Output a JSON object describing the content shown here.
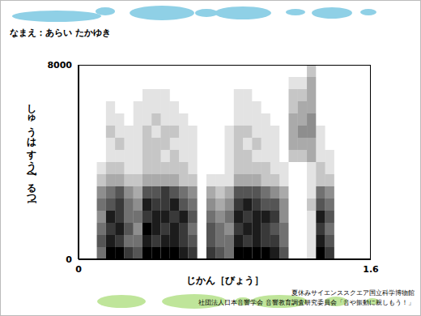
{
  "chart_data": {
    "type": "heatmap",
    "title": "なまえ：あらい たかゆき",
    "x_label": "じかん［びょう］",
    "y_label": "しゅうはすう［へるつ］",
    "xlim": [
      0,
      1.6
    ],
    "ylim": [
      0,
      8000
    ],
    "xticks": [
      0,
      1.6
    ],
    "yticks": [
      0,
      8000
    ],
    "grid": false,
    "color": "#000000",
    "cell_range": [
      0,
      9
    ],
    "x_edges": [
      0,
      0.05,
      0.1,
      0.15,
      0.2,
      0.25,
      0.3,
      0.35,
      0.4,
      0.45,
      0.5,
      0.55,
      0.6,
      0.65,
      0.7,
      0.75,
      0.8,
      0.85,
      0.9,
      0.95,
      1,
      1.05,
      1.1,
      1.15,
      1.2,
      1.25,
      1.3,
      1.35,
      1.4,
      1.45,
      1.5,
      1.55,
      1.6
    ],
    "y_edges": [
      0,
      500,
      1000,
      1500,
      2000,
      2500,
      3000,
      3500,
      4000,
      4500,
      5000,
      5500,
      6000,
      6500,
      7000,
      7500,
      8000
    ],
    "cells": [
      [
        0,
        0,
        0,
        0,
        0,
        0,
        0,
        0,
        0,
        0,
        0,
        0,
        0,
        0,
        0,
        0
      ],
      [
        0,
        0,
        0,
        0,
        0,
        0,
        0,
        0,
        0,
        0,
        0,
        0,
        0,
        0,
        0,
        0
      ],
      [
        5,
        6,
        5,
        4,
        5,
        4,
        2,
        1,
        0,
        0,
        0,
        0,
        0,
        0,
        0,
        0
      ],
      [
        9,
        8,
        7,
        8,
        6,
        5,
        3,
        2,
        1,
        1,
        2,
        1,
        1,
        0,
        0,
        0
      ],
      [
        9,
        7,
        8,
        7,
        7,
        6,
        3,
        2,
        1,
        2,
        1,
        1,
        0,
        0,
        0,
        0
      ],
      [
        7,
        5,
        6,
        5,
        5,
        4,
        2,
        1,
        1,
        1,
        1,
        0,
        0,
        0,
        0,
        0
      ],
      [
        6,
        5,
        4,
        5,
        4,
        3,
        2,
        1,
        1,
        1,
        1,
        1,
        1,
        0,
        0,
        0
      ],
      [
        9,
        8,
        9,
        7,
        8,
        6,
        3,
        2,
        2,
        2,
        2,
        1,
        1,
        1,
        0,
        0
      ],
      [
        9,
        7,
        8,
        8,
        7,
        6,
        3,
        2,
        2,
        2,
        1,
        2,
        1,
        1,
        0,
        0
      ],
      [
        9,
        8,
        7,
        8,
        7,
        7,
        3,
        2,
        1,
        2,
        2,
        1,
        1,
        1,
        0,
        0
      ],
      [
        9,
        8,
        8,
        7,
        8,
        6,
        3,
        2,
        2,
        1,
        2,
        1,
        1,
        0,
        0,
        0
      ],
      [
        8,
        7,
        7,
        8,
        6,
        5,
        2,
        2,
        1,
        1,
        1,
        1,
        0,
        0,
        0,
        0
      ],
      [
        7,
        6,
        5,
        6,
        5,
        4,
        2,
        1,
        1,
        1,
        1,
        0,
        0,
        0,
        0,
        0
      ],
      [
        0,
        0,
        0,
        0,
        0,
        0,
        0,
        0,
        0,
        0,
        0,
        0,
        0,
        0,
        0,
        0
      ],
      [
        7,
        6,
        6,
        5,
        4,
        3,
        1,
        0,
        0,
        0,
        0,
        0,
        0,
        0,
        0,
        0
      ],
      [
        6,
        5,
        5,
        4,
        3,
        2,
        1,
        0,
        0,
        0,
        0,
        0,
        0,
        0,
        0,
        0
      ],
      [
        5,
        5,
        4,
        5,
        4,
        3,
        1,
        1,
        1,
        1,
        1,
        0,
        0,
        0,
        0,
        0
      ],
      [
        9,
        8,
        7,
        8,
        7,
        6,
        3,
        2,
        2,
        2,
        2,
        1,
        1,
        1,
        0,
        0
      ],
      [
        9,
        7,
        8,
        7,
        8,
        6,
        3,
        2,
        2,
        1,
        2,
        1,
        1,
        1,
        0,
        0
      ],
      [
        9,
        8,
        8,
        8,
        7,
        6,
        3,
        2,
        1,
        2,
        1,
        1,
        1,
        0,
        0,
        0
      ],
      [
        9,
        7,
        7,
        8,
        6,
        5,
        2,
        2,
        1,
        1,
        1,
        1,
        0,
        0,
        0,
        0
      ],
      [
        8,
        7,
        6,
        7,
        6,
        4,
        2,
        1,
        1,
        1,
        1,
        0,
        0,
        0,
        0,
        0
      ],
      [
        6,
        5,
        5,
        4,
        4,
        3,
        1,
        1,
        0,
        0,
        0,
        0,
        0,
        0,
        0,
        0
      ],
      [
        0,
        0,
        0,
        0,
        0,
        0,
        0,
        0,
        2,
        3,
        3,
        3,
        2,
        2,
        1,
        0
      ],
      [
        0,
        0,
        0,
        0,
        0,
        0,
        0,
        0,
        2,
        3,
        4,
        3,
        3,
        2,
        1,
        0
      ],
      [
        1,
        1,
        1,
        1,
        2,
        1,
        1,
        1,
        3,
        3,
        4,
        4,
        3,
        3,
        3,
        2
      ],
      [
        9,
        8,
        7,
        8,
        6,
        5,
        2,
        2,
        1,
        1,
        1,
        0,
        0,
        0,
        0,
        0
      ],
      [
        7,
        6,
        5,
        6,
        5,
        4,
        2,
        1,
        1,
        0,
        0,
        0,
        0,
        0,
        0,
        0
      ],
      [
        0,
        0,
        0,
        0,
        0,
        0,
        0,
        0,
        0,
        0,
        0,
        0,
        0,
        0,
        0,
        0
      ],
      [
        0,
        0,
        0,
        0,
        0,
        0,
        0,
        0,
        0,
        0,
        0,
        0,
        0,
        0,
        0,
        0
      ],
      [
        0,
        0,
        0,
        0,
        0,
        0,
        0,
        0,
        0,
        0,
        0,
        0,
        0,
        0,
        0,
        0
      ],
      [
        0,
        0,
        0,
        0,
        0,
        0,
        0,
        0,
        0,
        0,
        0,
        0,
        0,
        0,
        0,
        0
      ]
    ],
    "annotations": [
      "夏休みサイエンススクエア国立科学博物館",
      "社団法人日本音響学会 音響教育調査研究委員会「音や振動に親しもう！」"
    ]
  }
}
